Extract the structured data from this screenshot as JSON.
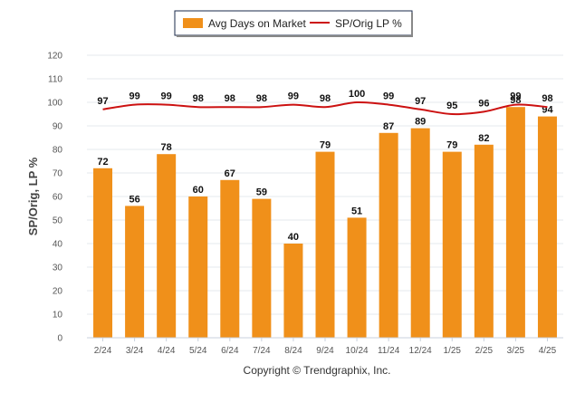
{
  "chart_data": {
    "type": "bar",
    "categories": [
      "2/24",
      "3/24",
      "4/24",
      "5/24",
      "6/24",
      "7/24",
      "8/24",
      "9/24",
      "10/24",
      "11/24",
      "12/24",
      "1/25",
      "2/25",
      "3/25",
      "4/25"
    ],
    "series": [
      {
        "name": "Avg Days on Market",
        "type": "bar",
        "color": "#f0901a",
        "values": [
          72,
          56,
          78,
          60,
          67,
          59,
          40,
          79,
          51,
          87,
          89,
          79,
          82,
          98,
          94
        ]
      },
      {
        "name": "SP/Orig LP %",
        "type": "line",
        "color": "#cc1111",
        "values": [
          97,
          99,
          99,
          98,
          98,
          98,
          99,
          98,
          100,
          99,
          97,
          95,
          96,
          99,
          98
        ]
      }
    ],
    "ylabel": "SP/Orig, LP %",
    "xlabel": "",
    "ylim": [
      0,
      120
    ],
    "yticks": [
      0,
      10,
      20,
      30,
      40,
      50,
      60,
      70,
      80,
      90,
      100,
      110,
      120
    ],
    "grid": true,
    "legend": "top-center"
  },
  "copyright": "Copyright © Trendgraphix, Inc."
}
